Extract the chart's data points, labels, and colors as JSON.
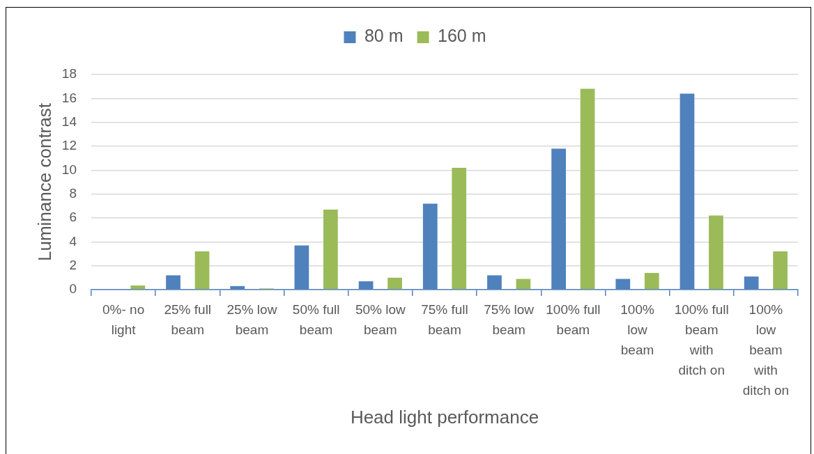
{
  "chart_data": {
    "type": "bar",
    "categories": [
      "0%- no light",
      "25% full beam",
      "25% low beam",
      "50% full beam",
      "50% low beam",
      "75% full beam",
      "75% low beam",
      "100% full beam",
      "100% low beam",
      "100% full beam with ditch on",
      "100% low beam with ditch on"
    ],
    "series": [
      {
        "name": "80 m",
        "color": "#4f81bd",
        "values": [
          0.05,
          1.2,
          0.3,
          3.7,
          0.7,
          7.2,
          1.2,
          11.8,
          0.9,
          16.4,
          1.1
        ]
      },
      {
        "name": "160 m",
        "color": "#9bbb59",
        "values": [
          0.35,
          3.2,
          0.1,
          6.7,
          1.0,
          10.2,
          0.9,
          16.8,
          1.4,
          6.2,
          3.2
        ]
      }
    ],
    "xlabel": "Head light performance",
    "ylabel": "Luminance contrast",
    "ylim": [
      0,
      18
    ],
    "yticks": [
      0,
      2,
      4,
      6,
      8,
      10,
      12,
      14,
      16,
      18
    ],
    "grid": "y",
    "legend": "top"
  }
}
